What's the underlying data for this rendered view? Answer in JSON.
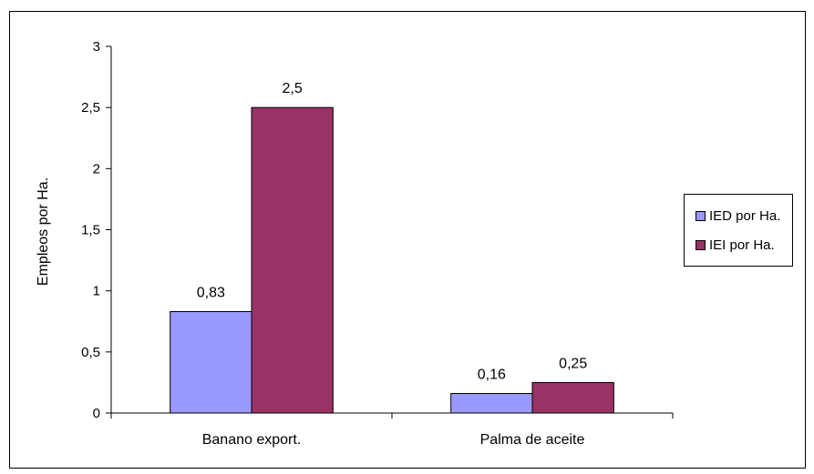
{
  "chart_data": {
    "type": "bar",
    "categories": [
      "Banano export.",
      "Palma de aceite"
    ],
    "series": [
      {
        "name": "IED por Ha.",
        "values": [
          0.83,
          0.16
        ],
        "labels": [
          "0,83",
          "0,16"
        ],
        "color": "#9999FF"
      },
      {
        "name": "IEI por Ha.",
        "values": [
          2.5,
          0.25
        ],
        "labels": [
          "2,5",
          "0,25"
        ],
        "color": "#993366"
      }
    ],
    "xlabel": "",
    "ylabel": "Empleos por Ha.",
    "ylim": [
      0,
      3
    ],
    "yticks": [
      0,
      0.5,
      1,
      1.5,
      2,
      2.5,
      3
    ],
    "ytick_labels": [
      "0",
      "0,5",
      "1",
      "1,5",
      "2",
      "2,5",
      "3"
    ],
    "grid": false,
    "legend_position": "right"
  }
}
